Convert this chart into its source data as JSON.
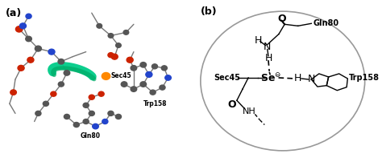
{
  "panel_a_label": "(a)",
  "panel_b_label": "(b)",
  "background": "#ffffff",
  "ellipse_color": "#999999",
  "line_color": "#000000",
  "panel_a_bg": "#f0f0f0",
  "sec45_label": "Sec45",
  "trp158_label": "Trp158",
  "gln80_label": "Gln80"
}
